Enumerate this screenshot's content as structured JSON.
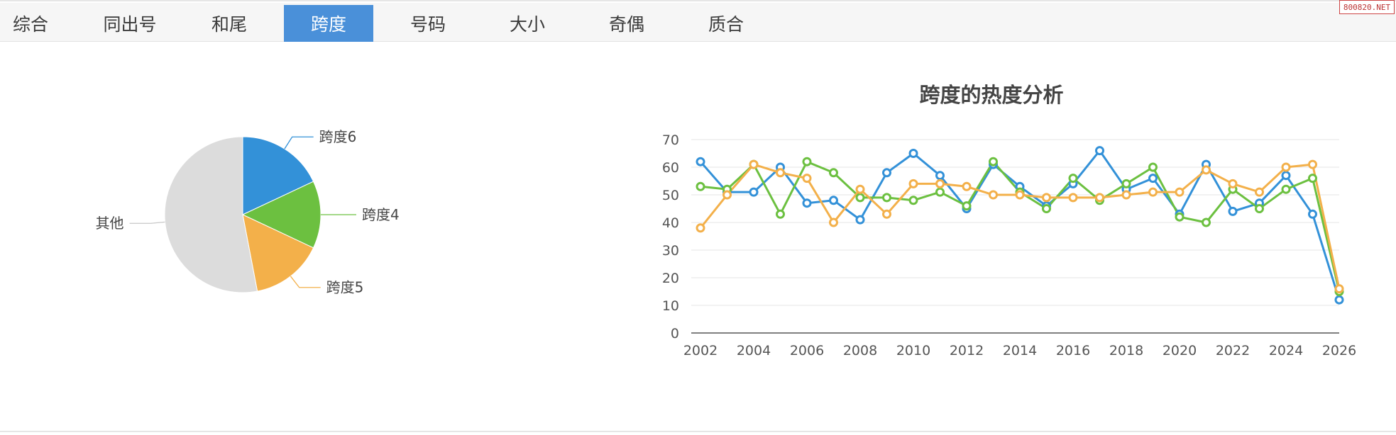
{
  "tabs": [
    {
      "label": "综合",
      "active": false
    },
    {
      "label": "同出号",
      "active": false
    },
    {
      "label": "和尾",
      "active": false
    },
    {
      "label": "跨度",
      "active": true
    },
    {
      "label": "号码",
      "active": false
    },
    {
      "label": "大小",
      "active": false
    },
    {
      "label": "奇偶",
      "active": false
    },
    {
      "label": "质合",
      "active": false
    }
  ],
  "watermark": "800820.NET",
  "colors": {
    "accent": "#4a90d9",
    "blue": "#3391d8",
    "green": "#6cc040",
    "orange": "#f3b04a",
    "gray": "#dcdcdc"
  },
  "chart_data": [
    {
      "type": "pie",
      "slices": [
        {
          "label": "跨度6",
          "value": 18,
          "color": "#3391d8"
        },
        {
          "label": "跨度4",
          "value": 14,
          "color": "#6cc040"
        },
        {
          "label": "跨度5",
          "value": 15,
          "color": "#f3b04a"
        },
        {
          "label": "其他",
          "value": 53,
          "color": "#dcdcdc"
        }
      ]
    },
    {
      "type": "line",
      "title": "跨度的热度分析",
      "x": [
        2002,
        2003,
        2004,
        2005,
        2006,
        2007,
        2008,
        2009,
        2010,
        2011,
        2012,
        2013,
        2014,
        2015,
        2016,
        2017,
        2018,
        2019,
        2020,
        2021,
        2022,
        2023,
        2024,
        2025,
        2026
      ],
      "x_ticks": [
        "2002",
        "2004",
        "2006",
        "2008",
        "2010",
        "2012",
        "2014",
        "2016",
        "2018",
        "2020",
        "2022",
        "2024",
        "2026"
      ],
      "y_ticks": [
        "0",
        "10",
        "20",
        "30",
        "40",
        "50",
        "60",
        "70"
      ],
      "ylim": [
        0,
        70
      ],
      "grid": true,
      "series": [
        {
          "color": "#3391d8",
          "values": [
            62,
            51,
            51,
            60,
            47,
            48,
            41,
            58,
            65,
            57,
            45,
            61,
            53,
            46,
            54,
            66,
            52,
            56,
            43,
            61,
            44,
            47,
            57,
            43,
            12
          ]
        },
        {
          "color": "#6cc040",
          "values": [
            53,
            52,
            61,
            43,
            62,
            58,
            49,
            49,
            48,
            51,
            46,
            62,
            51,
            45,
            56,
            48,
            54,
            60,
            42,
            40,
            52,
            45,
            52,
            56,
            15
          ]
        },
        {
          "color": "#f3b04a",
          "values": [
            38,
            50,
            61,
            58,
            56,
            40,
            52,
            43,
            54,
            54,
            53,
            50,
            50,
            49,
            49,
            49,
            50,
            51,
            51,
            59,
            54,
            51,
            60,
            61,
            16
          ]
        }
      ]
    }
  ]
}
